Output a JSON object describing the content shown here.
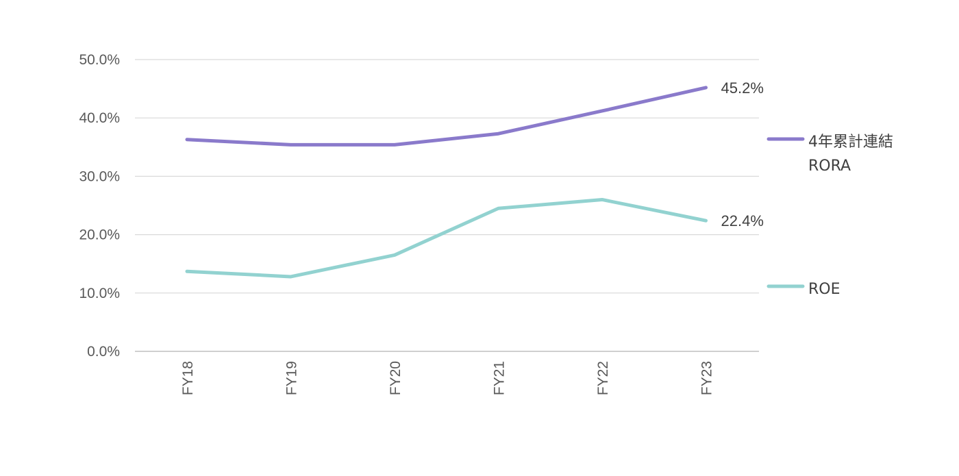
{
  "chart_data": {
    "type": "line",
    "categories": [
      "FY18",
      "FY19",
      "FY20",
      "FY21",
      "FY22",
      "FY23"
    ],
    "series": [
      {
        "name": "4年累計連結RORA",
        "legend_lines": [
          "4年累計連結",
          "RORA"
        ],
        "values": [
          36.3,
          35.4,
          35.4,
          37.3,
          41.2,
          45.2
        ],
        "color": "#8a7acb",
        "end_label": "45.2%"
      },
      {
        "name": "ROE",
        "legend_lines": [
          "ROE"
        ],
        "values": [
          13.7,
          12.8,
          16.5,
          24.5,
          26.0,
          22.4
        ],
        "color": "#92d2d0",
        "end_label": "22.4%"
      }
    ],
    "ylim": [
      0,
      50
    ],
    "yticks": [
      "0.0%",
      "10.0%",
      "20.0%",
      "30.0%",
      "40.0%",
      "50.0%"
    ],
    "grid": true,
    "legend_position": "right"
  }
}
